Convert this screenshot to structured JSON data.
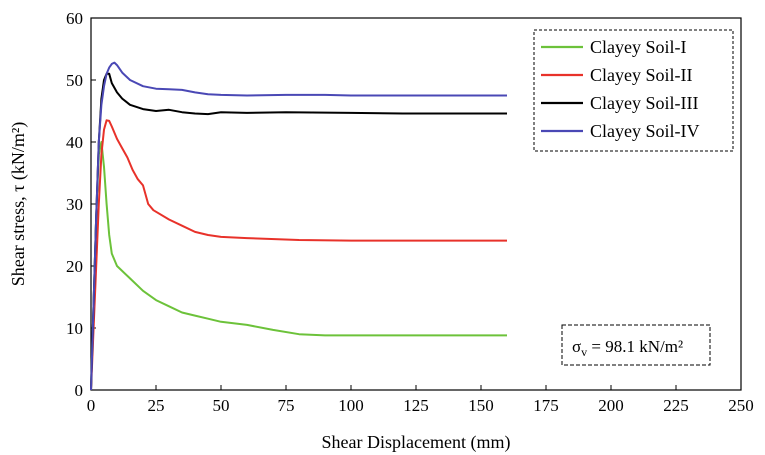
{
  "chart_data": {
    "type": "line",
    "title": "",
    "xlabel": "Shear Displacement (mm)",
    "ylabel": "Shear stress, τ (kN/m²)",
    "xlim": [
      0,
      250
    ],
    "ylim": [
      0,
      60
    ],
    "x_ticks": [
      0,
      25,
      50,
      75,
      100,
      125,
      150,
      175,
      200,
      225,
      250
    ],
    "y_ticks": [
      0,
      10,
      20,
      30,
      40,
      50,
      60
    ],
    "grid": false,
    "legend_position": "top-right",
    "series": [
      {
        "name": "Clayey Soil-I",
        "color": "#6cc23a",
        "points": [
          [
            0,
            0
          ],
          [
            1,
            14
          ],
          [
            2,
            28
          ],
          [
            3,
            38
          ],
          [
            4,
            40
          ],
          [
            5,
            36
          ],
          [
            6,
            30
          ],
          [
            7,
            25
          ],
          [
            8,
            22
          ],
          [
            10,
            20
          ],
          [
            15,
            18
          ],
          [
            20,
            16
          ],
          [
            25,
            14.5
          ],
          [
            30,
            13.5
          ],
          [
            35,
            12.5
          ],
          [
            40,
            12
          ],
          [
            45,
            11.5
          ],
          [
            50,
            11
          ],
          [
            60,
            10.5
          ],
          [
            70,
            9.7
          ],
          [
            80,
            9
          ],
          [
            90,
            8.8
          ],
          [
            100,
            8.8
          ],
          [
            120,
            8.8
          ],
          [
            140,
            8.8
          ],
          [
            160,
            8.8
          ]
        ]
      },
      {
        "name": "Clayey Soil-II",
        "color": "#e8322a",
        "points": [
          [
            0,
            0
          ],
          [
            1,
            10
          ],
          [
            2,
            20
          ],
          [
            3,
            30
          ],
          [
            4,
            38
          ],
          [
            5,
            42
          ],
          [
            6,
            43.5
          ],
          [
            7,
            43.4
          ],
          [
            8,
            42.5
          ],
          [
            10,
            40.5
          ],
          [
            12,
            39
          ],
          [
            14,
            37.5
          ],
          [
            16,
            35.5
          ],
          [
            18,
            34
          ],
          [
            20,
            33
          ],
          [
            22,
            30
          ],
          [
            24,
            29
          ],
          [
            30,
            27.5
          ],
          [
            35,
            26.5
          ],
          [
            40,
            25.5
          ],
          [
            45,
            25
          ],
          [
            50,
            24.7
          ],
          [
            60,
            24.5
          ],
          [
            80,
            24.2
          ],
          [
            100,
            24.1
          ],
          [
            120,
            24.1
          ],
          [
            140,
            24.1
          ],
          [
            160,
            24.1
          ]
        ]
      },
      {
        "name": "Clayey Soil-III",
        "color": "#000000",
        "points": [
          [
            0,
            0
          ],
          [
            1,
            14
          ],
          [
            2,
            28
          ],
          [
            3,
            40
          ],
          [
            4,
            47
          ],
          [
            5,
            50
          ],
          [
            6,
            51
          ],
          [
            7,
            51
          ],
          [
            8,
            49.5
          ],
          [
            10,
            48
          ],
          [
            12,
            47
          ],
          [
            15,
            46
          ],
          [
            20,
            45.3
          ],
          [
            25,
            45
          ],
          [
            30,
            45.2
          ],
          [
            35,
            44.8
          ],
          [
            40,
            44.6
          ],
          [
            45,
            44.5
          ],
          [
            50,
            44.8
          ],
          [
            60,
            44.7
          ],
          [
            75,
            44.8
          ],
          [
            100,
            44.7
          ],
          [
            120,
            44.6
          ],
          [
            140,
            44.6
          ],
          [
            160,
            44.6
          ]
        ]
      },
      {
        "name": "Clayey Soil-IV",
        "color": "#4a48b5",
        "points": [
          [
            0,
            0
          ],
          [
            1,
            14
          ],
          [
            2,
            28
          ],
          [
            3,
            40
          ],
          [
            4,
            46
          ],
          [
            5,
            49
          ],
          [
            6,
            51
          ],
          [
            7,
            52
          ],
          [
            8,
            52.6
          ],
          [
            9,
            52.8
          ],
          [
            10,
            52.4
          ],
          [
            12,
            51.2
          ],
          [
            15,
            50
          ],
          [
            20,
            49
          ],
          [
            25,
            48.6
          ],
          [
            30,
            48.5
          ],
          [
            35,
            48.4
          ],
          [
            40,
            48
          ],
          [
            45,
            47.7
          ],
          [
            50,
            47.6
          ],
          [
            60,
            47.5
          ],
          [
            75,
            47.6
          ],
          [
            90,
            47.6
          ],
          [
            100,
            47.5
          ],
          [
            120,
            47.5
          ],
          [
            140,
            47.5
          ],
          [
            160,
            47.5
          ]
        ]
      }
    ],
    "annotation": {
      "symbol": "σ",
      "subscript": "v",
      "text": " = 98.1 kN/m²"
    }
  }
}
